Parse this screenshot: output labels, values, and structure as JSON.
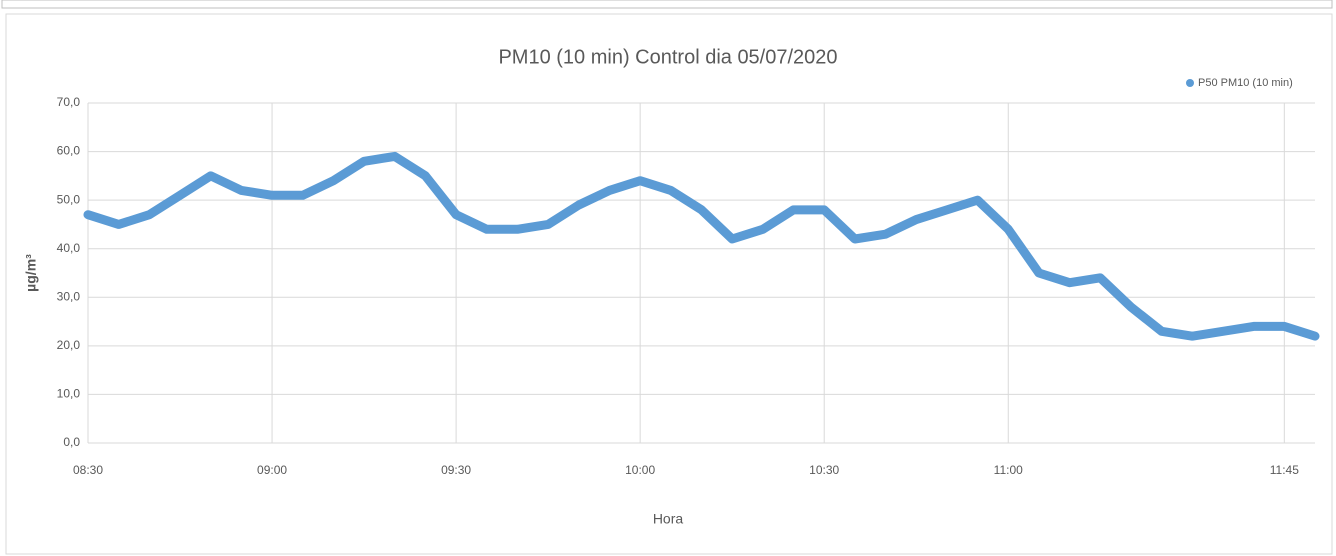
{
  "chart_data": {
    "type": "line",
    "title": "PM10 (10 min) Control dia 05/07/2020",
    "xlabel": "Hora",
    "ylabel": "µg/m³",
    "x": [
      "08:30",
      "08:35",
      "08:40",
      "08:45",
      "08:50",
      "08:55",
      "09:00",
      "09:05",
      "09:10",
      "09:15",
      "09:20",
      "09:25",
      "09:30",
      "09:35",
      "09:40",
      "09:45",
      "09:50",
      "09:55",
      "10:00",
      "10:05",
      "10:10",
      "10:15",
      "10:20",
      "10:25",
      "10:30",
      "10:35",
      "10:40",
      "10:45",
      "10:50",
      "10:55",
      "11:00",
      "11:05",
      "11:10",
      "11:15",
      "11:20",
      "11:25",
      "11:30",
      "11:35",
      "11:40",
      "11:45",
      "11:50"
    ],
    "series": [
      {
        "name": "P50 PM10 (10 min)",
        "color": "#5b9bd5",
        "values": [
          47,
          45,
          47,
          51,
          55,
          52,
          51,
          51,
          54,
          58,
          59,
          55,
          47,
          44,
          44,
          45,
          49,
          52,
          54,
          52,
          48,
          42,
          44,
          48,
          48,
          42,
          43,
          46,
          48,
          50,
          44,
          35,
          33,
          34,
          28,
          23,
          22,
          23,
          24,
          24,
          22
        ]
      }
    ],
    "xticks": [
      "08:30",
      "09:00",
      "09:30",
      "10:00",
      "10:30",
      "11:00",
      "11:45"
    ],
    "ylim": [
      0,
      70
    ],
    "yticks": [
      {
        "value": 0,
        "label": "0,0"
      },
      {
        "value": 10,
        "label": "10,0"
      },
      {
        "value": 20,
        "label": "20,0"
      },
      {
        "value": 30,
        "label": "30,0"
      },
      {
        "value": 40,
        "label": "40,0"
      },
      {
        "value": 50,
        "label": "50,0"
      },
      {
        "value": 60,
        "label": "60,0"
      },
      {
        "value": 70,
        "label": "70,0"
      }
    ],
    "grid": true,
    "legend": "top-right"
  }
}
